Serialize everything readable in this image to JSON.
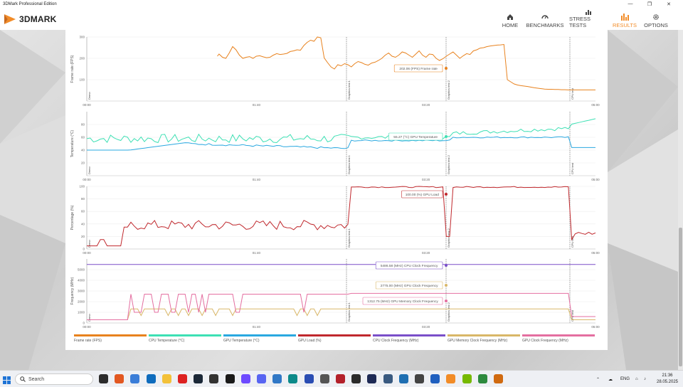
{
  "window": {
    "title": "3DMark Professional Edition"
  },
  "app": {
    "logo": "3DMARK",
    "nav": [
      {
        "label": "HOME",
        "icon": "home-icon",
        "active": false
      },
      {
        "label": "BENCHMARKS",
        "icon": "gauge-icon",
        "active": false
      },
      {
        "label": "STRESS TESTS",
        "icon": "bars-icon",
        "active": false
      },
      {
        "label": "RESULTS",
        "icon": "chart-icon",
        "active": true
      },
      {
        "label": "OPTIONS",
        "icon": "gear-icon",
        "active": false
      }
    ],
    "accent_color": "#f28c28"
  },
  "chart_data": [
    {
      "type": "line",
      "ylabel": "Frame rate (FPS)",
      "ylim": [
        0,
        300
      ],
      "yticks": [
        "100",
        "200",
        "300"
      ],
      "xticks": [
        "00:00",
        "01:40",
        "03:20",
        "05:00"
      ],
      "markers": [
        "Demo",
        "Graphics test 1",
        "Graphics test 2",
        "CPU test"
      ],
      "tooltip": "202.06 (FPS) Frame rate",
      "series": [
        {
          "name": "Frame rate (FPS)",
          "color": "#e8821e",
          "x": [
            77,
            78,
            80,
            82,
            84,
            86,
            88,
            90,
            92,
            94,
            96,
            98,
            100,
            102,
            104,
            106,
            108,
            110,
            112,
            114,
            116,
            118,
            120,
            122,
            124,
            126,
            128,
            130,
            132,
            134,
            136,
            138,
            140,
            142,
            144,
            146,
            148,
            150,
            152,
            154,
            156,
            158,
            160,
            162,
            164,
            166,
            168,
            170,
            172,
            174,
            176,
            178,
            180,
            182,
            184,
            186,
            188,
            190,
            192,
            194,
            196,
            198,
            200,
            202,
            204,
            206,
            208,
            210,
            212,
            214,
            216,
            218,
            220,
            222,
            224,
            226,
            228,
            230,
            232,
            234,
            236,
            238,
            240,
            242,
            244,
            246,
            248,
            250,
            252,
            254,
            256,
            258,
            260,
            262,
            264,
            266,
            268,
            270,
            272,
            274,
            276,
            278,
            280,
            282,
            284,
            286,
            288,
            290,
            292,
            294,
            296,
            298,
            300
          ],
          "y": [
            210,
            220,
            205,
            200,
            225,
            255,
            240,
            215,
            200,
            205,
            208,
            200,
            210,
            212,
            207,
            203,
            205,
            215,
            222,
            218,
            220,
            223,
            232,
            235,
            240,
            238,
            260,
            275,
            285,
            280,
            300,
            296,
            202,
            180,
            160,
            150,
            170,
            165,
            175,
            170,
            160,
            175,
            185,
            180,
            172,
            168,
            178,
            182,
            190,
            200,
            215,
            225,
            210,
            205,
            215,
            230,
            225,
            215,
            205,
            220,
            235,
            215,
            205,
            220,
            218,
            200,
            190,
            198,
            210,
            220,
            230,
            215,
            200,
            212,
            222,
            218,
            235,
            240,
            248,
            250,
            255,
            258,
            260,
            262,
            263,
            265,
            100,
            90,
            80,
            75,
            72,
            70,
            68,
            65,
            62,
            60,
            58,
            56,
            55,
            55,
            54,
            54,
            53,
            53,
            52,
            52,
            52,
            52,
            52,
            52,
            52,
            52,
            52
          ]
        }
      ]
    },
    {
      "type": "line",
      "ylabel": "Temperature (°C)",
      "ylim": [
        0,
        100
      ],
      "yticks": [
        "20",
        "40",
        "60",
        "80"
      ],
      "xticks": [
        "00:00",
        "01:40",
        "03:20",
        "05:00"
      ],
      "markers": [
        "Demo",
        "Graphics test 1",
        "Graphics test 2",
        "CPU test"
      ],
      "tooltip": "55.27 (°C) GPU Temperature",
      "series": [
        {
          "name": "CPU Temperature (°C)",
          "color": "#3de0b4"
        },
        {
          "name": "GPU Temperature (°C)",
          "color": "#2aa8e0"
        }
      ]
    },
    {
      "type": "line",
      "ylabel": "Percentage (%)",
      "ylim": [
        0,
        100
      ],
      "yticks": [
        "0",
        "20",
        "40",
        "60",
        "80",
        "100"
      ],
      "xticks": [
        "00:00",
        "01:40",
        "03:20",
        "05:00"
      ],
      "markers": [
        "Demo",
        "Graphics test 1",
        "Graphics test 2",
        "CPU test"
      ],
      "tooltip": "100.00 (%) GPU Load",
      "series": [
        {
          "name": "GPU Load (%)",
          "color": "#c0282d"
        }
      ]
    },
    {
      "type": "line",
      "ylabel": "Frequency (MHz)",
      "ylim": [
        0,
        6000
      ],
      "yticks": [
        "0",
        "1000",
        "2000",
        "3000",
        "4000",
        "5000"
      ],
      "xticks": [
        "00:00",
        "01:40",
        "03:20",
        "05:00"
      ],
      "markers": [
        "Demo",
        "Graphics test 1",
        "Graphics test 2",
        "CPU test"
      ],
      "tooltips": [
        "5486.58 (MHz) CPU Clock Frequency",
        "2775.00 (MHz) GPU Clock Frequency",
        "1312.75 (MHz) GPU Memory Clock Frequency"
      ],
      "series": [
        {
          "name": "CPU Clock Frequency (MHz)",
          "color": "#7a4fc9"
        },
        {
          "name": "GPU Memory Clock Frequency (MHz)",
          "color": "#d9b768"
        },
        {
          "name": "GPU Clock Frequency (MHz)",
          "color": "#e46fa0"
        }
      ]
    }
  ],
  "legend": [
    {
      "label": "Frame rate (FPS)",
      "color": "#e8821e"
    },
    {
      "label": "CPU Temperature (°C)",
      "color": "#3de0b4"
    },
    {
      "label": "GPU Temperature (°C)",
      "color": "#2aa8e0"
    },
    {
      "label": "GPU Load (%)",
      "color": "#c0282d"
    },
    {
      "label": "CPU Clock Frequency (MHz)",
      "color": "#7a4fc9"
    },
    {
      "label": "GPU Memory Clock Frequency (MHz)",
      "color": "#d9b768"
    },
    {
      "label": "GPU Clock Frequency (MHz)",
      "color": "#e46fa0"
    }
  ],
  "taskbar": {
    "search_placeholder": "Search",
    "apps": [
      {
        "name": "bg-app-icon",
        "color": "#2c2c2c"
      },
      {
        "name": "firefox-icon",
        "color": "#e25822"
      },
      {
        "name": "chrome-icon",
        "color": "#3a7dd8"
      },
      {
        "name": "outlook-icon",
        "color": "#0f6cbd"
      },
      {
        "name": "explorer-icon",
        "color": "#f3c13a"
      },
      {
        "name": "opera-icon",
        "color": "#d22"
      },
      {
        "name": "steam-icon",
        "color": "#1b2838"
      },
      {
        "name": "epic-icon",
        "color": "#333"
      },
      {
        "name": "ubisoft-icon",
        "color": "#1a1a1a"
      },
      {
        "name": "proton-icon",
        "color": "#6d4aff"
      },
      {
        "name": "discord-icon",
        "color": "#5865f2"
      },
      {
        "name": "app-blue-icon",
        "color": "#3178c6"
      },
      {
        "name": "edge-icon",
        "color": "#0c8a8a"
      },
      {
        "name": "app-purple-icon",
        "color": "#2a4db3"
      },
      {
        "name": "settings-icon",
        "color": "#555"
      },
      {
        "name": "app-red-icon",
        "color": "#b3202a"
      },
      {
        "name": "app-dark-icon",
        "color": "#2b2b2b"
      },
      {
        "name": "asus-icon",
        "color": "#1e2a55"
      },
      {
        "name": "app-gear-icon",
        "color": "#3a5a80"
      },
      {
        "name": "calc-icon",
        "color": "#1f6fb2"
      },
      {
        "name": "notes-icon",
        "color": "#444"
      },
      {
        "name": "defender-icon",
        "color": "#1f5fbf"
      },
      {
        "name": "3dmark-icon",
        "color": "#f28c28"
      },
      {
        "name": "nvidia-icon",
        "color": "#76b900"
      },
      {
        "name": "app-green-icon",
        "color": "#2d8a3e"
      },
      {
        "name": "app-monitor-icon",
        "color": "#d06a10"
      }
    ],
    "language": "ENG",
    "time": "21:36",
    "date": "28.05.2025"
  }
}
